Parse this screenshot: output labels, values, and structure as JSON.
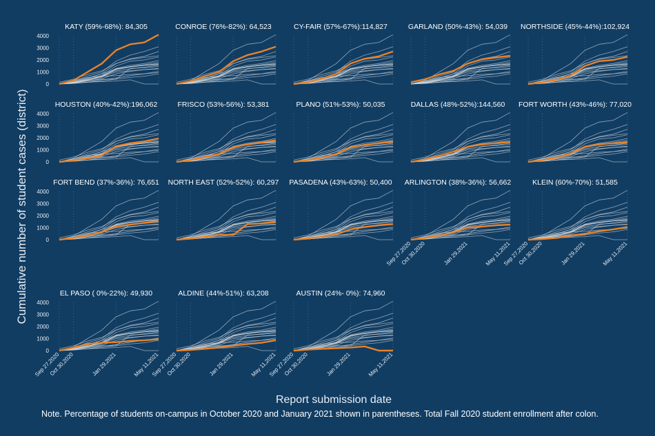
{
  "figure": {
    "y_axis_label": "Cumulative number of student cases (district)",
    "x_axis_label": "Report submission date",
    "note": "Note. Percentage of students on-campus in October 2020 and January 2021 shown in parentheses. Total Fall 2020 student enrollment after colon."
  },
  "chart_data": {
    "type": "line",
    "layout": "small-multiples",
    "ylim": [
      0,
      4000
    ],
    "yticks": [
      "0",
      "1000",
      "2000",
      "3000",
      "4000"
    ],
    "xticks": [
      "Sep 27,2020",
      "Oct 30,2020",
      "Jan 29,2021",
      "May 11,2021"
    ],
    "grid": "dotted vertical",
    "x": [
      "Sep 27,2020",
      "Oct 30,2020",
      "Dec 1,2020",
      "Jan 1,2021",
      "Jan 29,2021",
      "Mar 1,2021",
      "Apr 1,2021",
      "May 11,2021"
    ],
    "highlight_color": "#e8832a",
    "background_color": "#cfd6dc",
    "panels": [
      {
        "title": "KATY (59%-68%): 84,305",
        "values": [
          0,
          300,
          1000,
          1700,
          2800,
          3300,
          3450,
          4100
        ]
      },
      {
        "title": "CONROE (76%-82%): 64,523",
        "values": [
          0,
          250,
          650,
          1000,
          1900,
          2400,
          2700,
          3100
        ]
      },
      {
        "title": "CY-FAIR (57%-67%):114,827",
        "values": [
          0,
          150,
          450,
          850,
          1700,
          2100,
          2300,
          2700
        ]
      },
      {
        "title": "GARLAND (50%-43%): 54,039",
        "values": [
          150,
          400,
          800,
          1100,
          1700,
          2050,
          2200,
          2350
        ]
      },
      {
        "title": "NORTHSIDE (45%-44%):102,924",
        "values": [
          0,
          150,
          350,
          700,
          1500,
          1900,
          2000,
          2250
        ]
      },
      {
        "title": "HOUSTON (40%-42%):196,062",
        "values": [
          0,
          120,
          300,
          550,
          1300,
          1550,
          1700,
          1950
        ]
      },
      {
        "title": "FRISCO (53%-56%): 53,381",
        "values": [
          0,
          150,
          400,
          650,
          1200,
          1450,
          1600,
          1800
        ]
      },
      {
        "title": "PLANO (51%-53%): 50,035",
        "values": [
          0,
          150,
          350,
          650,
          1200,
          1400,
          1550,
          1700
        ]
      },
      {
        "title": "DALLAS (48%-52%):144,560",
        "values": [
          0,
          200,
          500,
          850,
          1250,
          1450,
          1550,
          1650
        ]
      },
      {
        "title": "FORT WORTH (43%-46%): 77,020",
        "values": [
          0,
          150,
          350,
          700,
          1250,
          1450,
          1550,
          1600
        ]
      },
      {
        "title": "FORT BEND (37%-36%): 76,651",
        "values": [
          0,
          150,
          350,
          650,
          1100,
          1250,
          1400,
          1550
        ]
      },
      {
        "title": "NORTH EAST (52%-52%): 60,297",
        "values": [
          0,
          100,
          250,
          400,
          400,
          1300,
          1350,
          1450
        ]
      },
      {
        "title": "PASADENA (43%-63%): 50,400",
        "values": [
          0,
          100,
          250,
          450,
          850,
          1050,
          1200,
          1300
        ]
      },
      {
        "title": "ARLINGTON (38%-36%): 56,662",
        "values": [
          0,
          150,
          350,
          600,
          1000,
          1100,
          1200,
          1250
        ]
      },
      {
        "title": "KLEIN (60%-70%): 51,585",
        "values": [
          0,
          50,
          150,
          350,
          500,
          700,
          850,
          1050
        ]
      },
      {
        "title": "EL PASO ( 0%-22%): 49,930",
        "values": [
          0,
          250,
          550,
          650,
          700,
          800,
          850,
          950
        ]
      },
      {
        "title": "ALDINE (44%-51%): 63,208",
        "values": [
          0,
          50,
          150,
          250,
          400,
          550,
          650,
          850
        ]
      },
      {
        "title": "AUSTIN (24%- 0%): 74,960",
        "values": [
          0,
          80,
          150,
          200,
          250,
          350,
          0,
          0
        ]
      }
    ],
    "background_series": [
      [
        0,
        300,
        1000,
        1700,
        2800,
        3300,
        3450,
        4100
      ],
      [
        0,
        250,
        650,
        1000,
        1900,
        2400,
        2700,
        3100
      ],
      [
        0,
        150,
        450,
        850,
        1700,
        2100,
        2300,
        2700
      ],
      [
        150,
        400,
        800,
        1100,
        1700,
        2050,
        2200,
        2350
      ],
      [
        0,
        150,
        350,
        700,
        1500,
        1900,
        2000,
        2250
      ],
      [
        0,
        120,
        300,
        550,
        1300,
        1550,
        1700,
        1950
      ],
      [
        0,
        150,
        400,
        650,
        1200,
        1450,
        1600,
        1800
      ],
      [
        0,
        150,
        350,
        650,
        1200,
        1400,
        1550,
        1700
      ],
      [
        0,
        200,
        500,
        850,
        1250,
        1450,
        1550,
        1650
      ],
      [
        0,
        150,
        350,
        700,
        1250,
        1450,
        1550,
        1600
      ],
      [
        0,
        150,
        350,
        650,
        1100,
        1250,
        1400,
        1550
      ],
      [
        0,
        100,
        250,
        400,
        400,
        1300,
        1350,
        1450
      ],
      [
        0,
        100,
        250,
        450,
        850,
        1050,
        1200,
        1300
      ],
      [
        0,
        150,
        350,
        600,
        1000,
        1100,
        1200,
        1250
      ],
      [
        0,
        50,
        150,
        350,
        500,
        700,
        850,
        1050
      ],
      [
        0,
        250,
        550,
        650,
        700,
        800,
        850,
        950
      ],
      [
        0,
        50,
        150,
        250,
        400,
        550,
        650,
        850
      ],
      [
        0,
        80,
        150,
        200,
        250,
        350,
        0,
        0
      ]
    ]
  }
}
